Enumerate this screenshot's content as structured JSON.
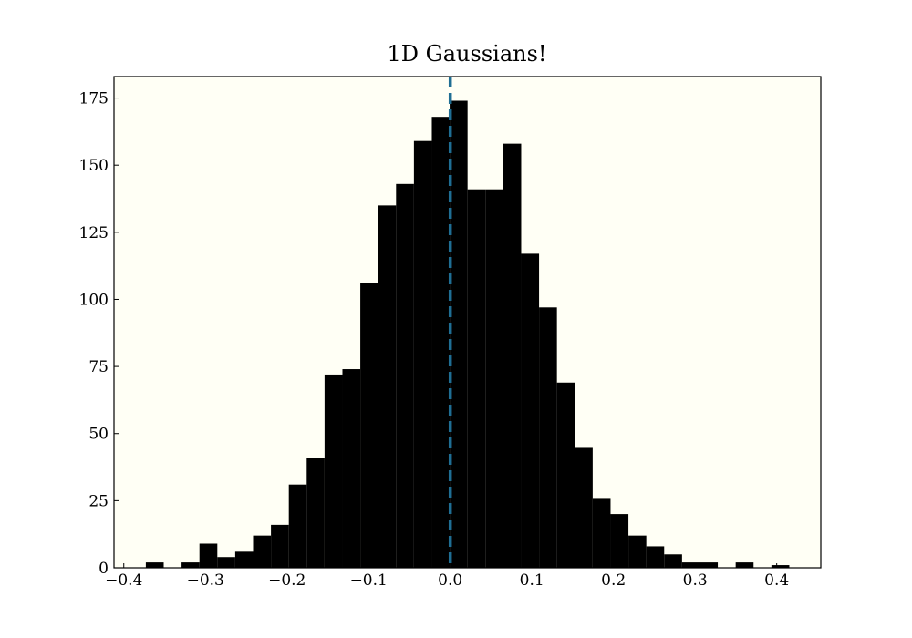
{
  "chart_data": {
    "type": "histogram",
    "title": "1D Gaussians!",
    "bins": [
      -0.373,
      -0.3511,
      -0.3292,
      -0.3073,
      -0.2854,
      -0.2635,
      -0.2416,
      -0.2197,
      -0.1978,
      -0.1759,
      -0.154,
      -0.1321,
      -0.1102,
      -0.0883,
      -0.0664,
      -0.0445,
      -0.0226,
      -0.0007,
      0.0212,
      0.0431,
      0.065,
      0.0869,
      0.1088,
      0.1307,
      0.1526,
      0.1745,
      0.1964,
      0.2183,
      0.2402,
      0.2621,
      0.284,
      0.3059,
      0.3278,
      0.3497,
      0.3716,
      0.3935,
      0.4154
    ],
    "values": [
      2,
      0,
      2,
      9,
      4,
      6,
      12,
      16,
      31,
      41,
      72,
      74,
      106,
      135,
      143,
      159,
      168,
      174,
      141,
      141,
      158,
      117,
      97,
      69,
      45,
      26,
      20,
      12,
      8,
      5,
      2,
      2,
      0,
      2,
      0,
      1
    ],
    "color": "#000000",
    "background": "#fffff5",
    "vline": 0,
    "vline_color": "#1f6e94",
    "xlim": [
      -0.412,
      0.454
    ],
    "xticks": [
      {
        "value": -0.4,
        "label": "−0.4"
      },
      {
        "value": -0.3,
        "label": "−0.3"
      },
      {
        "value": -0.2,
        "label": "−0.2"
      },
      {
        "value": -0.1,
        "label": "−0.1"
      },
      {
        "value": 0,
        "label": "0.0"
      },
      0.1,
      0.2,
      0.3,
      0.4
    ],
    "ylim": [
      0,
      183
    ],
    "yticks": [
      0,
      25,
      50,
      75,
      100,
      125,
      150,
      175
    ]
  }
}
